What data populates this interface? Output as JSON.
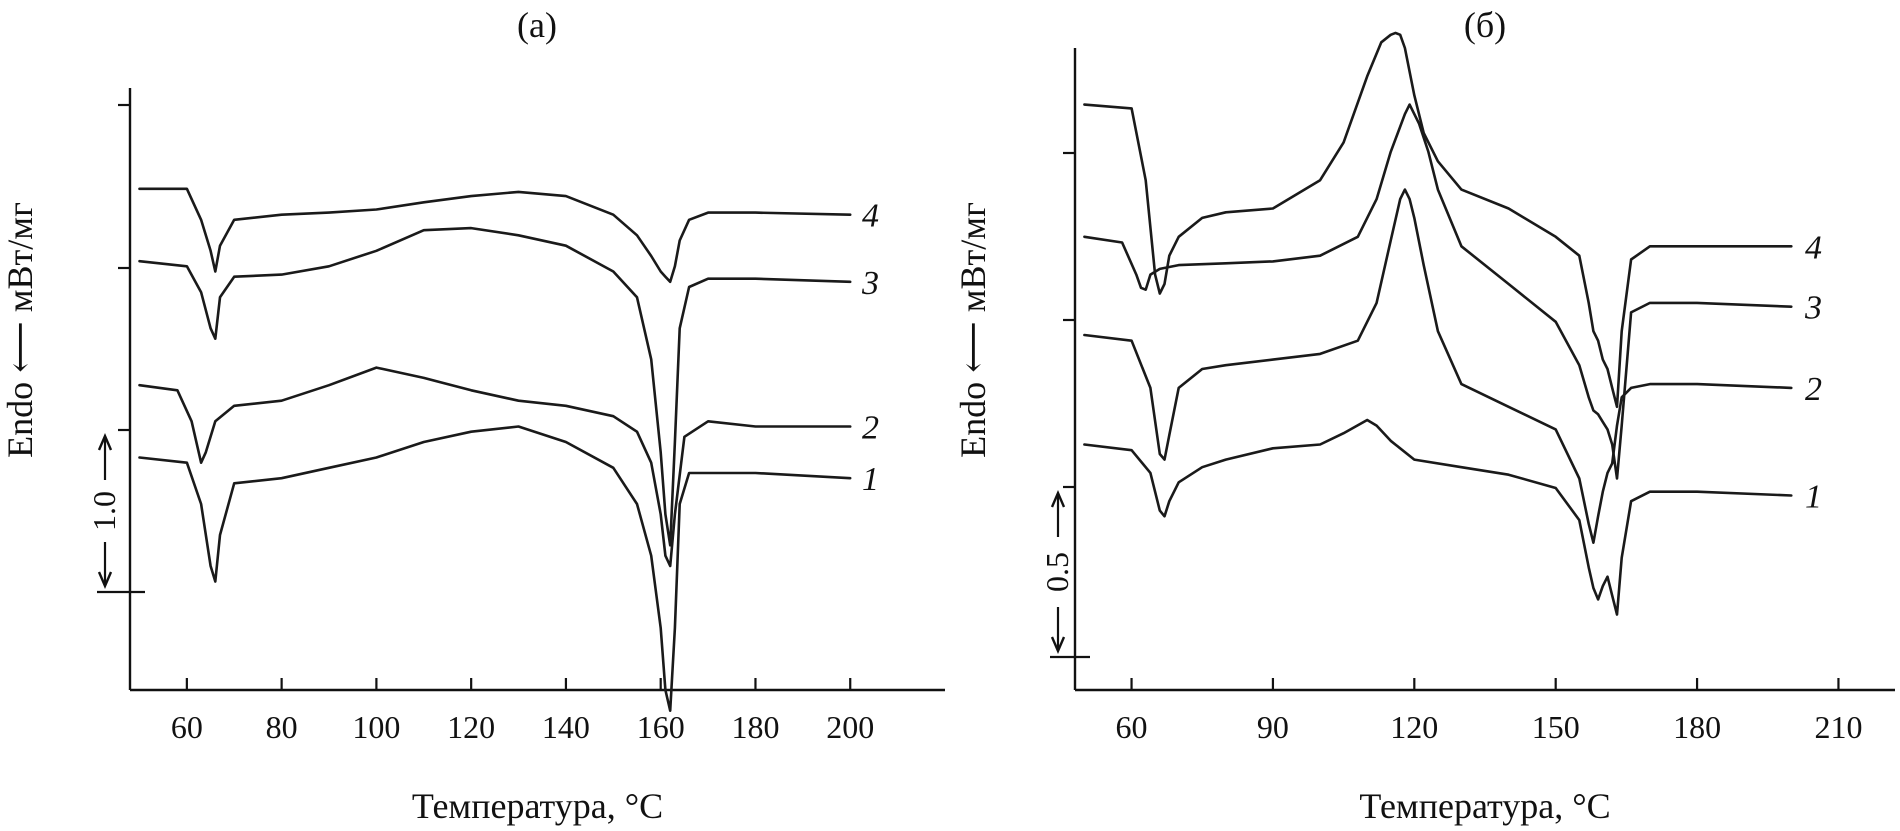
{
  "chart_data": [
    {
      "type": "line",
      "panel_label": "(а)",
      "xlabel": "Температура, °C",
      "ylabel": "Endo ⟵ мВт/мг",
      "x_ticks": [
        60,
        80,
        100,
        120,
        140,
        160,
        180,
        200
      ],
      "xlim": [
        48,
        220
      ],
      "ylim": [
        -4.4,
        1.6
      ],
      "scale_bar": {
        "label": "1.0",
        "value": 1.0
      },
      "series": [
        {
          "name": "1",
          "x": [
            50,
            60,
            63,
            65,
            66,
            67,
            70,
            80,
            90,
            100,
            110,
            120,
            130,
            140,
            150,
            155,
            158,
            160,
            161,
            162,
            163,
            164,
            166,
            170,
            180,
            200
          ],
          "y": [
            -2.15,
            -2.2,
            -2.6,
            -3.2,
            -3.35,
            -2.9,
            -2.4,
            -2.35,
            -2.25,
            -2.15,
            -2.0,
            -1.9,
            -1.85,
            -2.0,
            -2.25,
            -2.6,
            -3.1,
            -3.8,
            -4.4,
            -4.6,
            -3.8,
            -2.6,
            -2.3,
            -2.3,
            -2.3,
            -2.35
          ]
        },
        {
          "name": "2",
          "x": [
            50,
            58,
            61,
            63,
            64,
            66,
            70,
            80,
            90,
            100,
            110,
            120,
            130,
            140,
            150,
            155,
            158,
            160,
            161,
            162,
            163,
            165,
            170,
            180,
            200
          ],
          "y": [
            -1.45,
            -1.5,
            -1.8,
            -2.2,
            -2.1,
            -1.8,
            -1.65,
            -1.6,
            -1.45,
            -1.28,
            -1.38,
            -1.5,
            -1.6,
            -1.65,
            -1.75,
            -1.9,
            -2.2,
            -2.7,
            -3.1,
            -3.2,
            -2.7,
            -1.95,
            -1.8,
            -1.85,
            -1.85
          ]
        },
        {
          "name": "3",
          "x": [
            50,
            60,
            63,
            65,
            66,
            67,
            70,
            80,
            90,
            100,
            110,
            120,
            130,
            140,
            150,
            155,
            158,
            160,
            161,
            162,
            163,
            164,
            166,
            170,
            180,
            200
          ],
          "y": [
            -0.25,
            -0.3,
            -0.55,
            -0.9,
            -1.0,
            -0.6,
            -0.4,
            -0.38,
            -0.3,
            -0.15,
            0.05,
            0.07,
            0.0,
            -0.1,
            -0.35,
            -0.6,
            -1.2,
            -2.1,
            -2.7,
            -3.0,
            -2.0,
            -0.9,
            -0.5,
            -0.42,
            -0.42,
            -0.45
          ]
        },
        {
          "name": "4",
          "x": [
            50,
            60,
            63,
            65,
            66,
            67,
            70,
            80,
            90,
            100,
            110,
            120,
            130,
            140,
            150,
            155,
            158,
            160,
            161,
            162,
            163,
            164,
            166,
            170,
            180,
            200
          ],
          "y": [
            0.45,
            0.45,
            0.15,
            -0.15,
            -0.35,
            -0.1,
            0.15,
            0.2,
            0.22,
            0.25,
            0.32,
            0.38,
            0.42,
            0.38,
            0.2,
            0.0,
            -0.2,
            -0.35,
            -0.4,
            -0.45,
            -0.3,
            -0.05,
            0.15,
            0.22,
            0.22,
            0.2
          ]
        }
      ]
    },
    {
      "type": "line",
      "panel_label": "(б)",
      "xlabel": "Температура, °C",
      "ylabel": "Endo ⟵ мВт/мг",
      "x_ticks": [
        60,
        90,
        120,
        150,
        180,
        210
      ],
      "xlim": [
        48,
        222
      ],
      "ylim": [
        -2.5,
        0.9
      ],
      "scale_bar": {
        "label": "0.5",
        "value": 0.5
      },
      "series": [
        {
          "name": "1",
          "x": [
            50,
            60,
            64,
            66,
            67,
            68,
            70,
            75,
            80,
            90,
            100,
            105,
            110,
            112,
            115,
            120,
            130,
            140,
            150,
            155,
            157,
            158,
            159,
            160,
            161,
            162,
            163,
            164,
            166,
            170,
            180,
            200
          ],
          "y": [
            -1.2,
            -1.23,
            -1.35,
            -1.55,
            -1.58,
            -1.5,
            -1.4,
            -1.32,
            -1.28,
            -1.22,
            -1.2,
            -1.14,
            -1.07,
            -1.1,
            -1.18,
            -1.28,
            -1.32,
            -1.36,
            -1.43,
            -1.6,
            -1.85,
            -1.96,
            -2.02,
            -1.95,
            -1.9,
            -2.0,
            -2.1,
            -1.8,
            -1.5,
            -1.45,
            -1.45,
            -1.47
          ]
        },
        {
          "name": "2",
          "x": [
            50,
            60,
            64,
            66,
            67,
            68,
            70,
            75,
            80,
            90,
            100,
            108,
            112,
            115,
            117,
            118,
            119,
            120,
            122,
            125,
            130,
            140,
            150,
            155,
            157,
            158,
            159,
            160,
            161,
            162,
            163,
            164,
            166,
            170,
            180,
            200
          ],
          "y": [
            -0.62,
            -0.65,
            -0.9,
            -1.25,
            -1.28,
            -1.15,
            -0.9,
            -0.8,
            -0.78,
            -0.75,
            -0.72,
            -0.65,
            -0.45,
            -0.12,
            0.1,
            0.15,
            0.1,
            0.0,
            -0.25,
            -0.6,
            -0.88,
            -1.0,
            -1.12,
            -1.38,
            -1.62,
            -1.72,
            -1.58,
            -1.45,
            -1.35,
            -1.3,
            -1.1,
            -0.95,
            -0.9,
            -0.88,
            -0.88,
            -0.9
          ]
        },
        {
          "name": "3",
          "x": [
            50,
            58,
            61,
            62,
            63,
            64,
            66,
            70,
            80,
            90,
            100,
            108,
            112,
            115,
            118,
            119,
            120,
            121,
            123,
            125,
            130,
            140,
            150,
            155,
            157,
            158,
            159,
            160,
            161,
            162,
            163,
            164,
            166,
            170,
            180,
            200
          ],
          "y": [
            -0.1,
            -0.13,
            -0.3,
            -0.37,
            -0.38,
            -0.3,
            -0.27,
            -0.25,
            -0.24,
            -0.23,
            -0.2,
            -0.1,
            0.1,
            0.35,
            0.55,
            0.6,
            0.55,
            0.5,
            0.35,
            0.15,
            -0.15,
            -0.35,
            -0.55,
            -0.78,
            -0.95,
            -1.02,
            -1.04,
            -1.08,
            -1.12,
            -1.2,
            -1.38,
            -1.1,
            -0.5,
            -0.45,
            -0.45,
            -0.47
          ]
        },
        {
          "name": "4",
          "x": [
            50,
            60,
            63,
            65,
            66,
            67,
            68,
            70,
            75,
            80,
            90,
            100,
            105,
            110,
            113,
            115,
            116,
            117,
            118,
            120,
            122,
            125,
            130,
            140,
            150,
            155,
            157,
            158,
            159,
            160,
            161,
            162,
            163,
            164,
            166,
            170,
            180,
            200
          ],
          "y": [
            0.6,
            0.58,
            0.2,
            -0.3,
            -0.4,
            -0.35,
            -0.2,
            -0.1,
            0.0,
            0.03,
            0.05,
            0.2,
            0.4,
            0.75,
            0.93,
            0.97,
            0.98,
            0.97,
            0.9,
            0.65,
            0.45,
            0.3,
            0.15,
            0.05,
            -0.1,
            -0.2,
            -0.45,
            -0.6,
            -0.65,
            -0.75,
            -0.8,
            -0.9,
            -1.0,
            -0.6,
            -0.22,
            -0.15,
            -0.15,
            -0.15
          ]
        }
      ]
    }
  ]
}
